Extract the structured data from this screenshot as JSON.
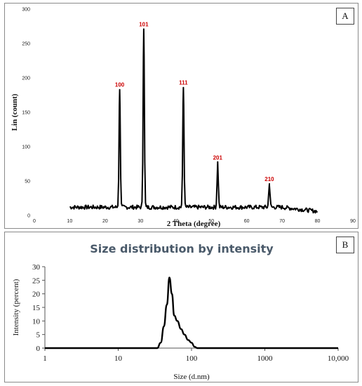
{
  "chart_data": [
    {
      "panel_label": "A",
      "type": "line",
      "xlabel": "2 Theta (degree)",
      "ylabel": "Lin (count)",
      "xlim": [
        0,
        90
      ],
      "ylim": [
        0,
        300
      ],
      "x_ticks": [
        0,
        10,
        20,
        30,
        40,
        50,
        60,
        70,
        80,
        90
      ],
      "y_ticks": [
        0,
        50,
        100,
        150,
        200,
        250,
        300
      ],
      "color": "#000000",
      "peak_label_color": "#cc0000",
      "peaks": [
        {
          "label": "100",
          "x": 24.1,
          "y": 183
        },
        {
          "label": "101",
          "x": 30.9,
          "y": 271
        },
        {
          "label": "111",
          "x": 42.1,
          "y": 186
        },
        {
          "label": "201",
          "x": 51.8,
          "y": 77
        },
        {
          "label": "210",
          "x": 66.4,
          "y": 46
        }
      ],
      "baseline_x_range": [
        10,
        80
      ],
      "baseline_level": 12
    },
    {
      "panel_label": "B",
      "type": "line",
      "title": "Size distribution by intensity",
      "xlabel": "Size (d.nm)",
      "ylabel": "Intensity (percent)",
      "xscale": "log",
      "xlim": [
        1,
        10000
      ],
      "ylim": [
        0,
        30
      ],
      "x_tick_labels": [
        "1",
        "10",
        "100",
        "1000",
        "10,000"
      ],
      "x_tick_values": [
        1,
        10,
        100,
        1000,
        10000
      ],
      "y_ticks": [
        0,
        5,
        10,
        15,
        20,
        25,
        30
      ],
      "color": "#000000",
      "title_color": "#4a5a6a",
      "series": [
        {
          "x": [
            1,
            20,
            34,
            38,
            42,
            46,
            50,
            54,
            58,
            64,
            72,
            80,
            90,
            100,
            110,
            120,
            10000
          ],
          "y": [
            0,
            0,
            0,
            2,
            8,
            16,
            26,
            20,
            12,
            10,
            7,
            5,
            3,
            2,
            0.5,
            0,
            0
          ]
        }
      ]
    }
  ]
}
